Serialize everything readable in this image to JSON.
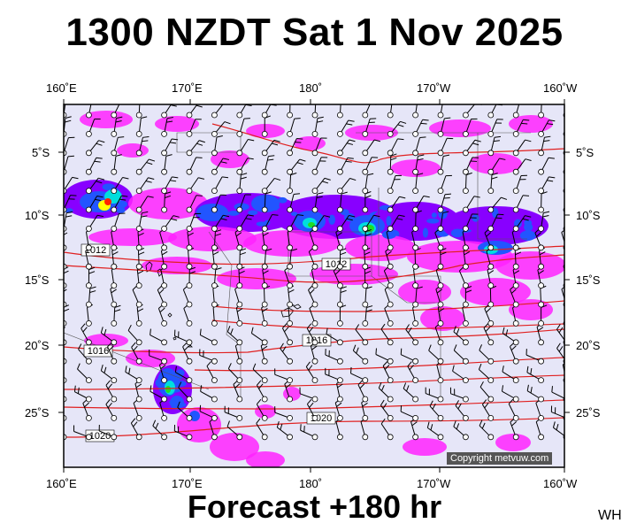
{
  "title": "1300 NZDT Sat 1 Nov 2025",
  "forecast_label": "Forecast +180 hr",
  "initials": "WH",
  "copyright": "Copyright metvuw.com",
  "lon_labels_top": [
    "160˚E",
    "170˚E",
    "180˚",
    "170˚W",
    "160˚W"
  ],
  "lon_labels_bottom": [
    "160˚E",
    "170˚E",
    "180˚",
    "170˚W",
    "160˚W"
  ],
  "lat_labels_left": [
    "5˚S",
    "10˚S",
    "15˚S",
    "20˚S",
    "25˚S"
  ],
  "lat_labels_right": [
    "5˚S",
    "10˚S",
    "15˚S",
    "20˚S",
    "25˚S"
  ],
  "isobar_labels": [
    "1012",
    "1012",
    "1016",
    "1016",
    "1020",
    "1020"
  ],
  "colors": {
    "ocean": "#e6e6f8",
    "isobar": "#e02020",
    "rain_light": "#ff22ff",
    "rain_mid": "#8800ff",
    "rain_blue": "#2255ff",
    "rain_cyan": "#00dddd",
    "rain_green": "#22dd22",
    "rain_yellow": "#ffff00",
    "rain_red": "#ff2200"
  }
}
